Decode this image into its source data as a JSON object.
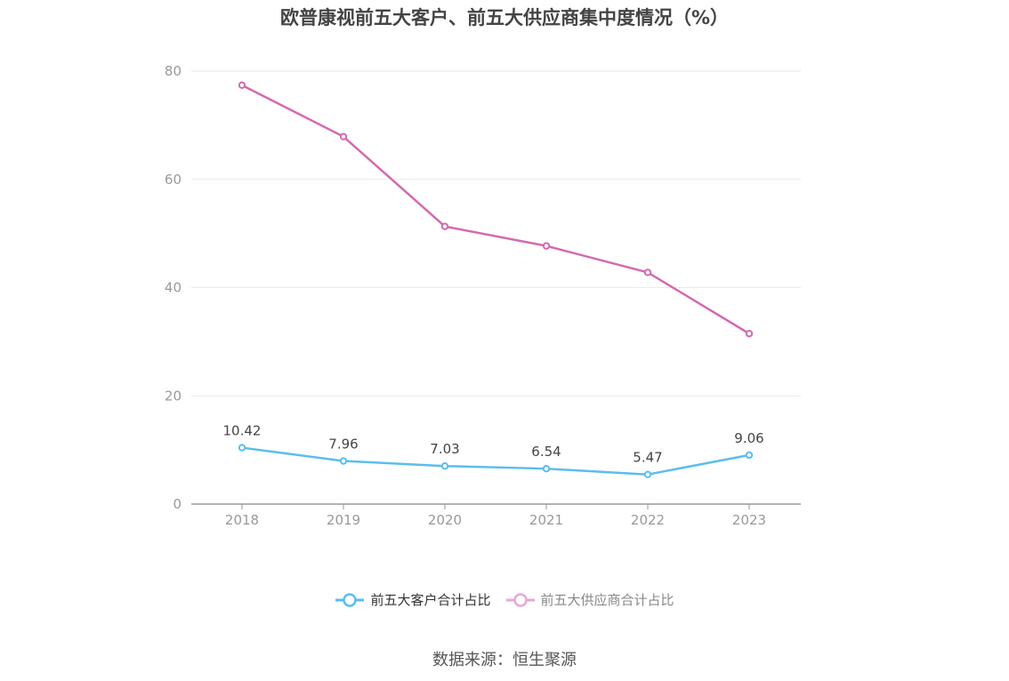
{
  "title": "欧普康视前五大客户、前五大供应商集中度情况（%）",
  "source": "数据来源：恒生聚源",
  "chart_data": {
    "type": "line",
    "title": "欧普康视前五大客户、前五大供应商集中度情况（%）",
    "x": [
      "2018",
      "2019",
      "2020",
      "2021",
      "2022",
      "2023"
    ],
    "ylim": [
      0,
      80
    ],
    "yticks": [
      0,
      20,
      40,
      60,
      80
    ],
    "grid": true,
    "legend_position": "bottom",
    "series": [
      {
        "name": "前五大客户合计占比",
        "values": [
          10.42,
          7.96,
          7.03,
          6.54,
          5.47,
          9.06
        ],
        "labels": [
          "10.42",
          "7.96",
          "7.03",
          "6.54",
          "5.47",
          "9.06"
        ],
        "color": "#5bbdee",
        "show_labels": true
      },
      {
        "name": "前五大供应商合计占比",
        "values": [
          77.4,
          67.9,
          51.3,
          47.7,
          42.8,
          31.5
        ],
        "color": "#d46aaf",
        "legend_color": "#e8a7d3",
        "show_labels": false
      }
    ]
  }
}
